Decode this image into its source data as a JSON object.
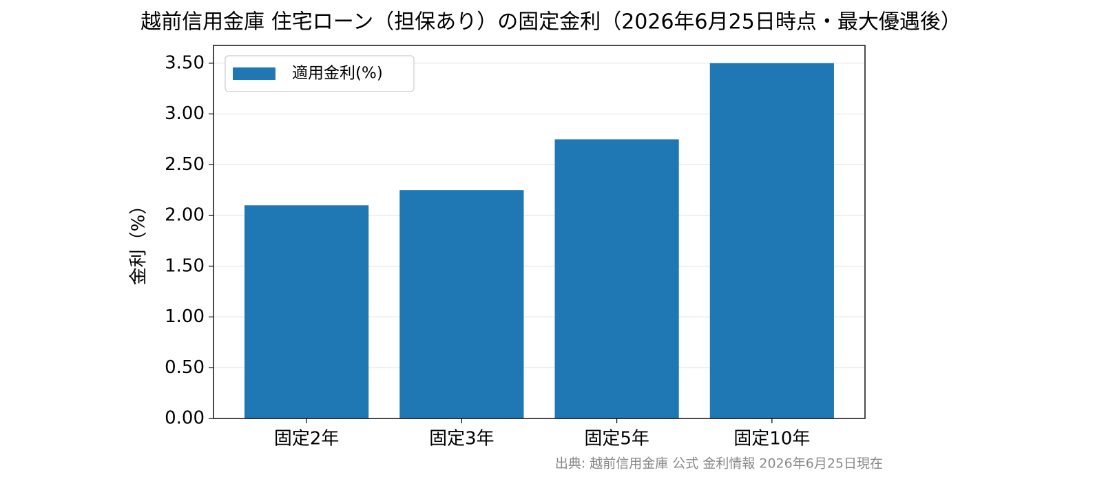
{
  "chart_data": {
    "type": "bar",
    "title": "越前信用金庫 住宅ローン（担保あり）の固定金利（2026年6月25日時点・最大優遇後）",
    "y_label": "金利（%）",
    "source": "出典: 越前信用金庫 公式 金利情報 2026年6月25日現在",
    "categories": [
      "固定2年",
      "固定3年",
      "固定5年",
      "固定10年"
    ],
    "series": [
      {
        "name": "適用金利(%)",
        "color": "#1f77b4",
        "values": [
          2.1,
          2.25,
          2.75,
          3.5
        ]
      }
    ],
    "ylim": [
      0,
      3.675
    ],
    "yticks": [
      {
        "value": 0,
        "label": "0.00"
      },
      {
        "value": 0.5,
        "label": "0.50"
      },
      {
        "value": 1,
        "label": "1.00"
      },
      {
        "value": 1.5,
        "label": "1.50"
      },
      {
        "value": 2,
        "label": "2.00"
      },
      {
        "value": 2.5,
        "label": "2.50"
      },
      {
        "value": 3,
        "label": "3.00"
      },
      {
        "value": 3.5,
        "label": "3.50"
      }
    ],
    "grid": true,
    "legend": "upper left"
  }
}
